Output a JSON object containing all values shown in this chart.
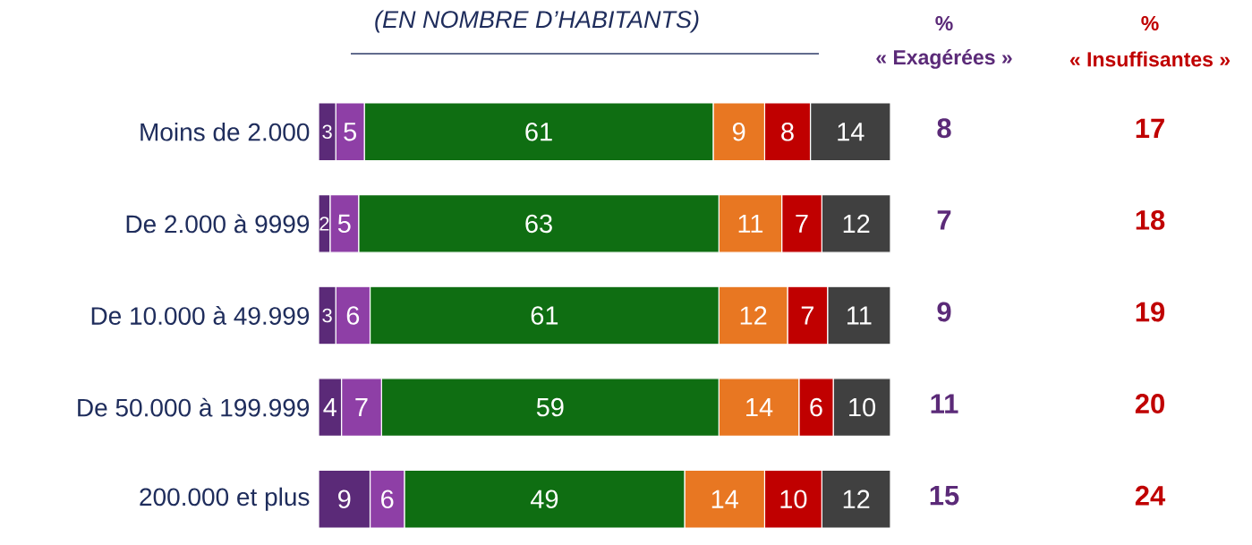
{
  "chart_data": {
    "type": "bar",
    "orientation": "horizontal",
    "stacked": true,
    "data_labels": true,
    "tick_labels": "y",
    "title": "(EN NOMBRE D’HABITANTS)",
    "categories": [
      "Moins de 2.000",
      "De 2.000 à 9999",
      "De 10.000 à 49.999",
      "De 50.000 à 199.999",
      "200.000 et plus"
    ],
    "series": [
      {
        "color": "#5b2a78",
        "values": [
          3,
          2,
          3,
          4,
          9
        ]
      },
      {
        "color": "#8e3fa6",
        "values": [
          5,
          5,
          6,
          7,
          6
        ]
      },
      {
        "color": "#0f6e12",
        "values": [
          61,
          63,
          61,
          59,
          49
        ]
      },
      {
        "color": "#e87722",
        "values": [
          9,
          11,
          12,
          14,
          14
        ]
      },
      {
        "color": "#c00000",
        "values": [
          8,
          7,
          7,
          6,
          10
        ]
      },
      {
        "color": "#404040",
        "values": [
          14,
          12,
          11,
          10,
          12
        ]
      }
    ],
    "annotations": [
      "%",
      "« Exagérées »",
      "8",
      "7",
      "9",
      "11",
      "15",
      "%",
      "« Insuffisantes »",
      "17",
      "18",
      "19",
      "20",
      "24"
    ]
  }
}
